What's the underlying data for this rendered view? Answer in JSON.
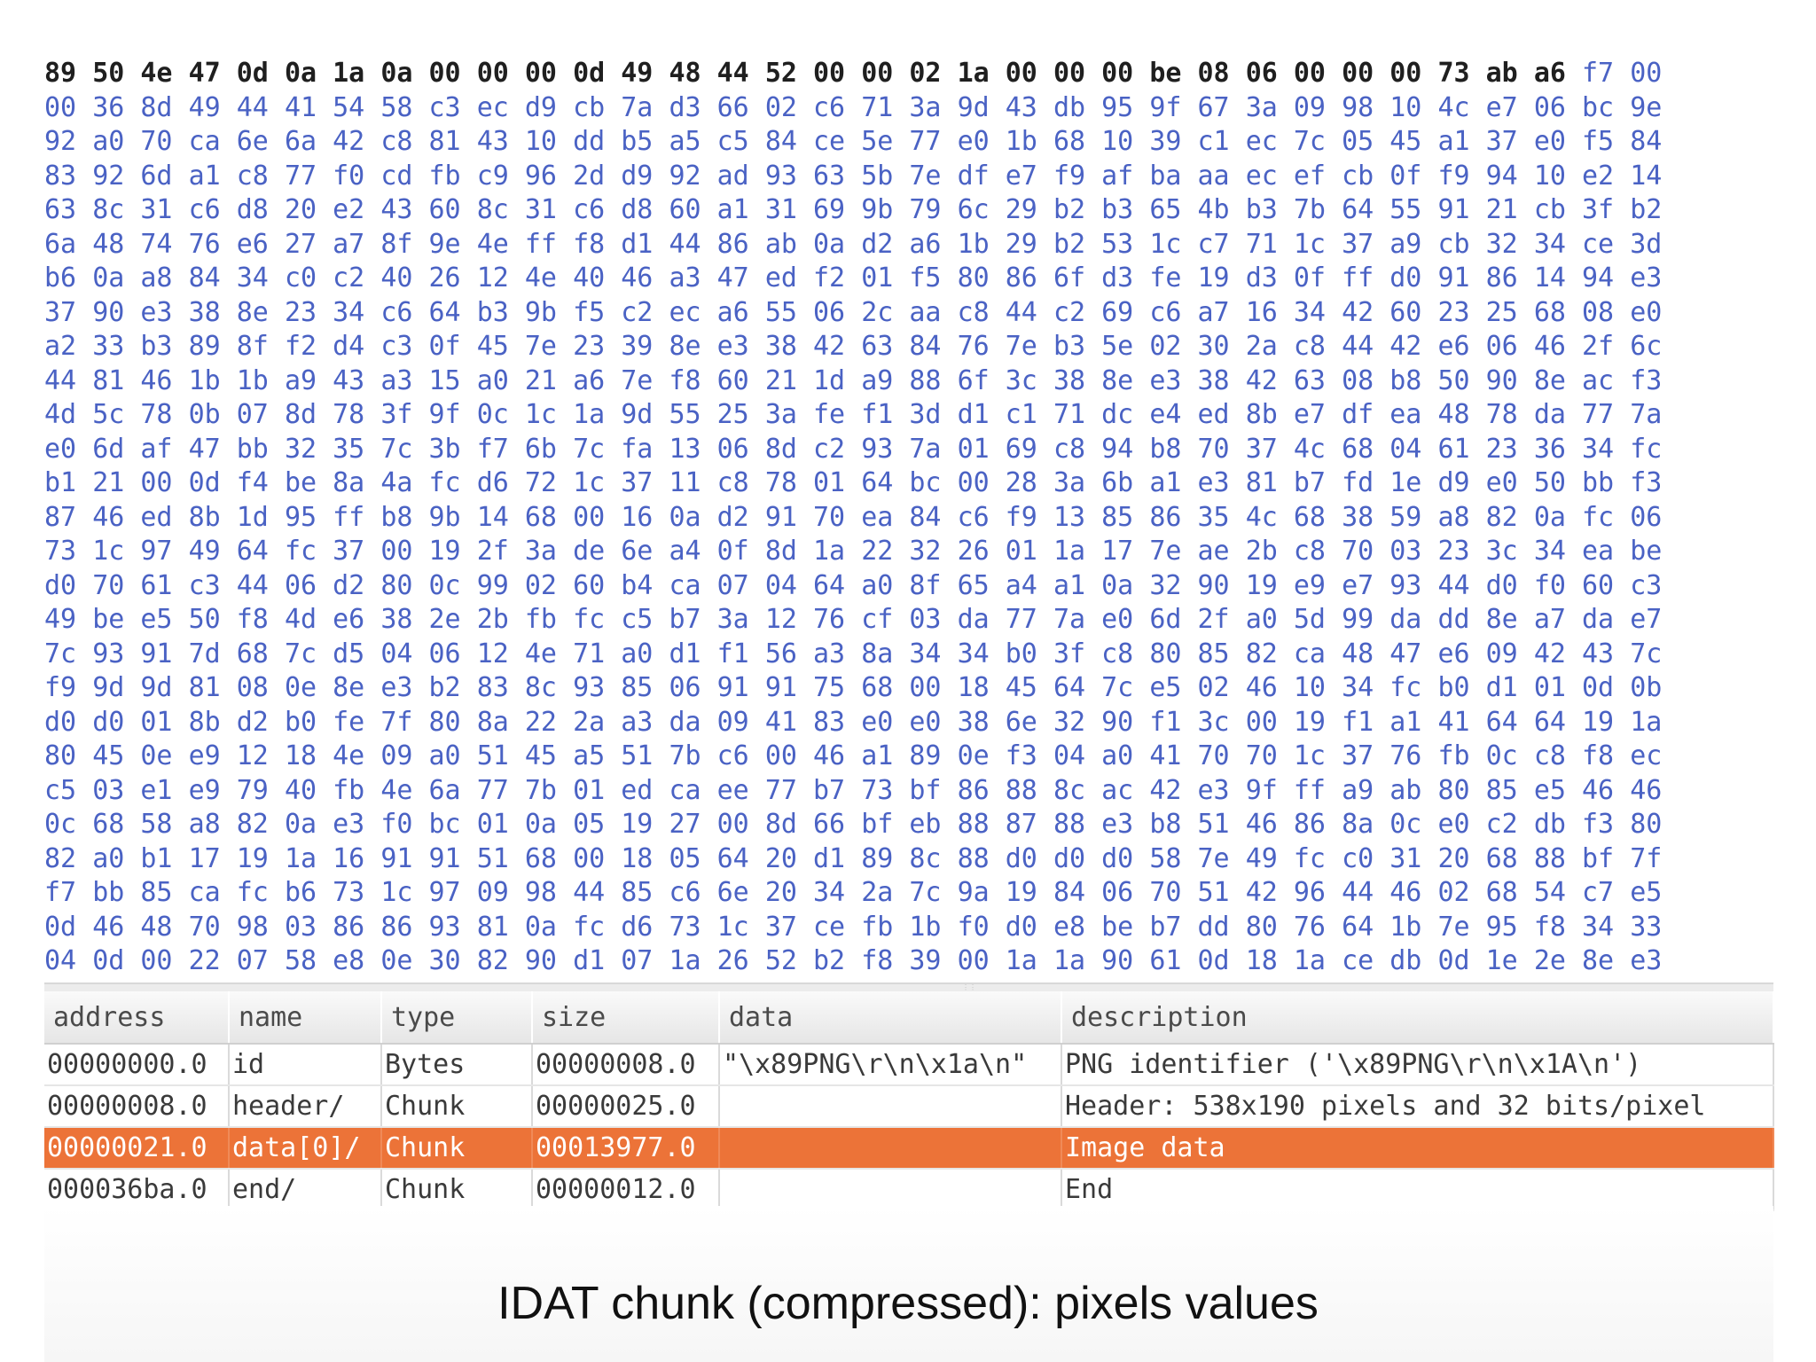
{
  "hex": {
    "highlighted_count": 32,
    "bytes": [
      "89 50 4e 47 0d 0a 1a 0a 00 00 00 0d 49 48 44 52 00 00 02 1a 00 00 00 be 08 06 00 00 00 73 ab a6 f7 00",
      "00 36 8d 49 44 41 54 58 c3 ec d9 cb 7a d3 66 02 c6 71 3a 9d 43 db 95 9f 67 3a 09 98 10 4c e7 06 bc 9e",
      "92 a0 70 ca 6e 6a 42 c8 81 43 10 dd b5 a5 c5 84 ce 5e 77 e0 1b 68 10 39 c1 ec 7c 05 45 a1 37 e0 f5 84",
      "83 92 6d a1 c8 77 f0 cd fb c9 96 2d d9 92 ad 93 63 5b 7e df e7 f9 af ba aa ec ef cb 0f f9 94 10 e2 14",
      "63 8c 31 c6 d8 20 e2 43 60 8c 31 c6 d8 60 a1 31 69 9b 79 6c 29 b2 b3 65 4b b3 7b 64 55 91 21 cb 3f b2",
      "6a 48 74 76 e6 27 a7 8f 9e 4e ff f8 d1 44 86 ab 0a d2 a6 1b 29 b2 53 1c c7 71 1c 37 a9 cb 32 34 ce 3d",
      "b6 0a a8 84 34 c0 c2 40 26 12 4e 40 46 a3 47 ed f2 01 f5 80 86 6f d3 fe 19 d3 0f ff d0 91 86 14 94 e3",
      "37 90 e3 38 8e 23 34 c6 64 b3 9b f5 c2 ec a6 55 06 2c aa c8 44 c2 69 c6 a7 16 34 42 60 23 25 68 08 e0",
      "a2 33 b3 89 8f f2 d4 c3 0f 45 7e 23 39 8e e3 38 42 63 84 76 7e b3 5e 02 30 2a c8 44 42 e6 06 46 2f 6c",
      "44 81 46 1b 1b a9 43 a3 15 a0 21 a6 7e f8 60 21 1d a9 88 6f 3c 38 8e e3 38 42 63 08 b8 50 90 8e ac f3",
      "4d 5c 78 0b 07 8d 78 3f 9f 0c 1c 1a 9d 55 25 3a fe f1 3d d1 c1 71 dc e4 ed 8b e7 df ea 48 78 da 77 7a",
      "e0 6d af 47 bb 32 35 7c 3b f7 6b 7c fa 13 06 8d c2 93 7a 01 69 c8 94 b8 70 37 4c 68 04 61 23 36 34 fc",
      "b1 21 00 0d f4 be 8a 4a fc d6 72 1c 37 11 c8 78 01 64 bc 00 28 3a 6b a1 e3 81 b7 fd 1e d9 e0 50 bb f3",
      "87 46 ed 8b 1d 95 ff b8 9b 14 68 00 16 0a d2 91 70 ea 84 c6 f9 13 85 86 35 4c 68 38 59 a8 82 0a fc 06",
      "73 1c 97 49 64 fc 37 00 19 2f 3a de 6e a4 0f 8d 1a 22 32 26 01 1a 17 7e ae 2b c8 70 03 23 3c 34 ea be",
      "d0 70 61 c3 44 06 d2 80 0c 99 02 60 b4 ca 07 04 64 a0 8f 65 a4 a1 0a 32 90 19 e9 e7 93 44 d0 f0 60 c3",
      "49 be e5 50 f8 4d e6 38 2e 2b fb fc c5 b7 3a 12 76 cf 03 da 77 7a e0 6d 2f a0 5d 99 da dd 8e a7 da e7",
      "7c 93 91 7d 68 7c d5 04 06 12 4e 71 a0 d1 f1 56 a3 8a 34 34 b0 3f c8 80 85 82 ca 48 47 e6 09 42 43 7c",
      "f9 9d 9d 81 08 0e 8e e3 b2 83 8c 93 85 06 91 91 75 68 00 18 45 64 7c e5 02 46 10 34 fc b0 d1 01 0d 0b",
      "d0 d0 01 8b d2 b0 fe 7f 80 8a 22 2a a3 da 09 41 83 e0 e0 38 6e 32 90 f1 3c 00 19 f1 a1 41 64 64 19 1a",
      "80 45 0e e9 12 18 4e 09 a0 51 45 a5 51 7b c6 00 46 a1 89 0e f3 04 a0 41 70 70 1c 37 76 fb 0c c8 f8 ec",
      "c5 03 e1 e9 79 40 fb 4e 6a 77 7b 01 ed ca ee 77 b7 73 bf 86 88 8c ac 42 e3 9f ff a9 ab 80 85 e5 46 46",
      "0c 68 58 a8 82 0a e3 f0 bc 01 0a 05 19 27 00 8d 66 bf eb 88 87 88 e3 b8 51 46 86 8a 0c e0 c2 db f3 80",
      "82 a0 b1 17 19 1a 16 91 91 51 68 00 18 05 64 20 d1 89 8c 88 d0 d0 d0 58 7e 49 fc c0 31 20 68 88 bf 7f",
      "f7 bb 85 ca fc b6 73 1c 97 09 98 44 85 c6 6e 20 34 2a 7c 9a 19 84 06 70 51 42 96 44 46 02 68 54 c7 e5",
      "0d 46 48 70 98 03 86 86 93 81 0a fc d6 73 1c 37 ce fb 1b f0 d0 e8 be b7 dd 80 76 64 1b 7e 95 f8 34 33",
      "04 0d 00 22 07 58 e8 0e 30 82 90 d1 07 1a 26 52 b2 f8 39 00 1a 1a 90 61 0d 18 1a ce db 0d 1e 2e 8e e3"
    ]
  },
  "table": {
    "columns": [
      "address",
      "name",
      "type",
      "size",
      "data",
      "description"
    ],
    "rows": [
      {
        "address": "00000000.0",
        "name": "id",
        "type": "Bytes",
        "size": "00000008.0",
        "data": "\"\\x89PNG\\r\\n\\x1a\\n\"",
        "description": "PNG identifier ('\\x89PNG\\r\\n\\x1A\\n')",
        "selected": false
      },
      {
        "address": "00000008.0",
        "name": "header/",
        "type": "Chunk",
        "size": "00000025.0",
        "data": "",
        "description": "Header: 538x190 pixels and 32 bits/pixel",
        "selected": false
      },
      {
        "address": "00000021.0",
        "name": "data[0]/",
        "type": "Chunk",
        "size": "00013977.0",
        "data": "",
        "description": "Image data",
        "selected": true
      },
      {
        "address": "000036ba.0",
        "name": "end/",
        "type": "Chunk",
        "size": "00000012.0",
        "data": "",
        "description": "End",
        "selected": false
      }
    ]
  },
  "caption": "IDAT chunk (compressed): pixels values",
  "colors": {
    "hex_normal": "#4a62c4",
    "hex_highlight": "#1f1f1f",
    "selection": "#ec7338"
  }
}
